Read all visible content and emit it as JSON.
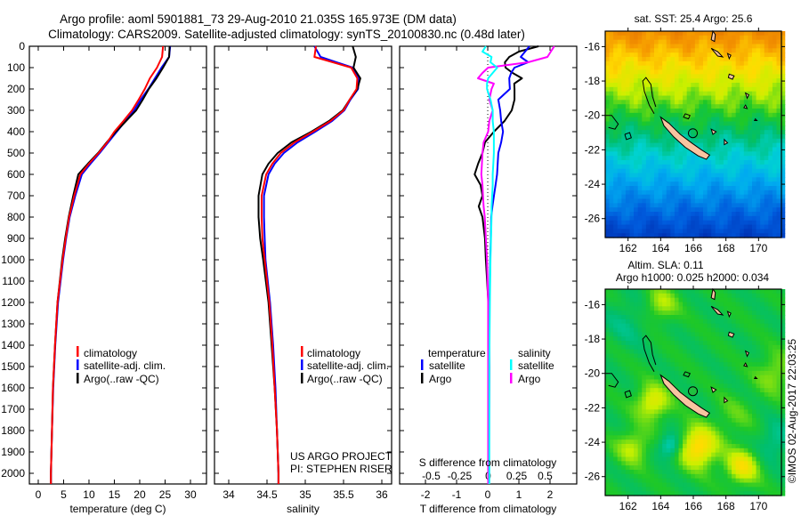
{
  "title": {
    "line1": "Argo profile: aoml 5901881_73 29-Aug-2010 21.035S 165.973E (DM data)",
    "line2": "Climatology: CARS2009. Satellite-adjusted climatology: synTS_20100830.nc (0.48d later)"
  },
  "depth_axis": {
    "ticks": [
      0,
      100,
      200,
      300,
      400,
      500,
      600,
      700,
      800,
      900,
      1000,
      1100,
      1200,
      1300,
      1400,
      1500,
      1600,
      1700,
      1800,
      1900,
      2000
    ],
    "ylim": [
      0,
      2050
    ]
  },
  "colors": {
    "climatology": "#ff0000",
    "satellite": "#0000ff",
    "argo": "#000000",
    "s_satellite": "#00ffff",
    "s_argo": "#ff00ff",
    "land": "#f8c4a0"
  },
  "chart_data": [
    {
      "type": "line",
      "title": "temperature",
      "xlabel": "temperature (deg C)",
      "xticks": [
        0,
        5,
        10,
        15,
        20,
        25,
        30
      ],
      "depth": [
        0,
        50,
        100,
        150,
        200,
        250,
        300,
        350,
        400,
        450,
        500,
        550,
        600,
        700,
        800,
        900,
        1000,
        1200,
        1400,
        1600,
        1800,
        2000
      ],
      "series": [
        {
          "name": "climatology",
          "color": "#ff0000",
          "values": [
            24.6,
            24.4,
            23.4,
            22.0,
            21.0,
            19.8,
            18.5,
            16.8,
            15.0,
            13.6,
            11.9,
            10.0,
            8.3,
            7.1,
            6.1,
            5.4,
            4.8,
            3.8,
            3.3,
            2.9,
            2.7,
            2.5
          ]
        },
        {
          "name": "satellite-adj. clim.",
          "color": "#0000ff",
          "values": [
            26.0,
            25.8,
            24.3,
            23.0,
            21.7,
            20.2,
            18.9,
            17.2,
            15.5,
            13.8,
            12.1,
            10.3,
            8.6,
            7.3,
            6.2,
            5.5,
            4.9,
            3.9,
            3.35,
            2.95,
            2.7,
            2.5
          ]
        },
        {
          "name": "Argo(..raw -QC)",
          "color": "#000000",
          "values": [
            25.9,
            25.8,
            24.6,
            23.3,
            21.8,
            20.6,
            19.3,
            17.3,
            15.3,
            13.5,
            11.8,
            9.8,
            7.9,
            6.9,
            6.0,
            5.3,
            4.7,
            3.8,
            3.3,
            2.9,
            2.7,
            2.5
          ]
        }
      ]
    },
    {
      "type": "line",
      "title": "salinity",
      "xlabel": "salinity",
      "xticks": [
        "34",
        "34.5",
        "35",
        "35.5",
        "36"
      ],
      "depth": [
        0,
        50,
        100,
        150,
        200,
        250,
        300,
        350,
        400,
        450,
        500,
        550,
        600,
        700,
        800,
        900,
        1000,
        1200,
        1400,
        1600,
        1800,
        2000
      ],
      "series": [
        {
          "name": "climatology",
          "color": "#ff0000",
          "values": [
            35.14,
            35.12,
            35.6,
            35.68,
            35.67,
            35.58,
            35.5,
            35.33,
            35.1,
            34.86,
            34.68,
            34.57,
            34.49,
            34.43,
            34.43,
            34.44,
            34.47,
            34.53,
            34.57,
            34.6,
            34.63,
            34.65
          ]
        },
        {
          "name": "satellite-adj. clim.",
          "color": "#0000ff",
          "values": [
            35.12,
            35.2,
            35.62,
            35.7,
            35.69,
            35.59,
            35.51,
            35.35,
            35.13,
            34.9,
            34.72,
            34.6,
            34.52,
            34.46,
            34.46,
            34.47,
            34.48,
            34.54,
            34.58,
            34.61,
            34.63,
            34.65
          ]
        },
        {
          "name": "Argo(..raw -QC)",
          "color": "#000000",
          "values": [
            35.62,
            35.66,
            35.63,
            35.72,
            35.68,
            35.58,
            35.49,
            35.31,
            35.08,
            34.82,
            34.64,
            34.52,
            34.44,
            34.39,
            34.39,
            34.41,
            34.45,
            34.52,
            34.56,
            34.6,
            34.63,
            34.65
          ]
        }
      ],
      "annotation": [
        "US ARGO PROJECT",
        "PI: STEPHEN RISER"
      ]
    },
    {
      "type": "line",
      "title": "difference from climatology",
      "xlabel": "T difference from climatology",
      "xticks": [
        "-2",
        "-1",
        "0",
        "1",
        "2"
      ],
      "s_xlabel": "S difference from climatology",
      "s_xticks": [
        "-0.5",
        "-0.25",
        "0",
        "0.25",
        "0.5"
      ],
      "legend_headers": {
        "temperature": "temperature",
        "salinity": "salinity"
      },
      "depth": [
        0,
        25,
        50,
        75,
        100,
        125,
        150,
        175,
        200,
        250,
        300,
        350,
        400,
        450,
        500,
        550,
        600,
        650,
        700,
        750,
        800,
        900,
        1000,
        1200,
        1500,
        2000
      ],
      "series": [
        {
          "name": "satellite",
          "group": "temperature",
          "axis": "T",
          "color": "#0000ff",
          "values": [
            1.34,
            1.2,
            1.06,
            1.3,
            0.86,
            0.75,
            0.69,
            0.7,
            0.71,
            0.34,
            0.4,
            0.43,
            0.49,
            0.43,
            0.34,
            0.32,
            0.3,
            0.25,
            0.2,
            0.15,
            0.11,
            0.1,
            0.08,
            0.06,
            0.05,
            0.04
          ]
        },
        {
          "name": "Argo",
          "group": "temperature",
          "axis": "T",
          "color": "#000000",
          "values": [
            1.63,
            1.0,
            0.69,
            0.55,
            0.57,
            0.8,
            1.1,
            0.85,
            0.86,
            0.86,
            0.77,
            0.54,
            0.2,
            -0.09,
            -0.17,
            -0.31,
            -0.42,
            -0.23,
            -0.17,
            -0.29,
            -0.17,
            -0.09,
            -0.06,
            0.02,
            0.05,
            0.03
          ]
        },
        {
          "name": "satellite",
          "group": "salinity",
          "axis": "S",
          "color": "#00ffff",
          "values": [
            -0.02,
            -0.05,
            0.03,
            0.02,
            0.08,
            0.04,
            0.0,
            -0.01,
            -0.01,
            0.02,
            0.04,
            0.04,
            0.05,
            0.05,
            0.05,
            0.045,
            0.04,
            0.04,
            0.035,
            0.03,
            0.03,
            0.025,
            0.02,
            0.015,
            0.01,
            0.01
          ]
        },
        {
          "name": "Argo",
          "group": "salinity",
          "axis": "S",
          "color": "#ff00ff",
          "values": [
            0.58,
            0.55,
            0.52,
            0.35,
            0.0,
            -0.05,
            -0.09,
            0.05,
            0.03,
            0.01,
            0.04,
            0.01,
            0.0,
            -0.04,
            -0.05,
            -0.055,
            -0.06,
            -0.05,
            -0.045,
            -0.04,
            -0.03,
            -0.02,
            -0.01,
            0.0,
            0.0,
            0.0
          ]
        }
      ]
    },
    {
      "type": "heatmap",
      "title": "sat. SST: 25.4 Argo: 25.6",
      "xticks": [
        "162",
        "164",
        "166",
        "168",
        "170"
      ],
      "yticks": [
        "-16",
        "-18",
        "-20",
        "-22",
        "-24",
        "-26"
      ],
      "xlim": [
        160.6,
        171.4
      ],
      "ylim": [
        -27.1,
        -15.1
      ],
      "float_position": {
        "lon": 165.973,
        "lat": -21.035
      }
    },
    {
      "type": "heatmap",
      "title": "Altim. SLA: 0.11",
      "subtitle": "Argo h1000: 0.025 h2000: 0.034",
      "xticks": [
        "162",
        "164",
        "166",
        "168",
        "170"
      ],
      "yticks": [
        "-16",
        "-18",
        "-20",
        "-22",
        "-24",
        "-26"
      ],
      "xlim": [
        160.6,
        171.4
      ],
      "ylim": [
        -27.1,
        -15.1
      ],
      "float_position": {
        "lon": 165.973,
        "lat": -21.035
      }
    }
  ],
  "stamp": "©IMOS 02-Aug-2017 22:03:25"
}
